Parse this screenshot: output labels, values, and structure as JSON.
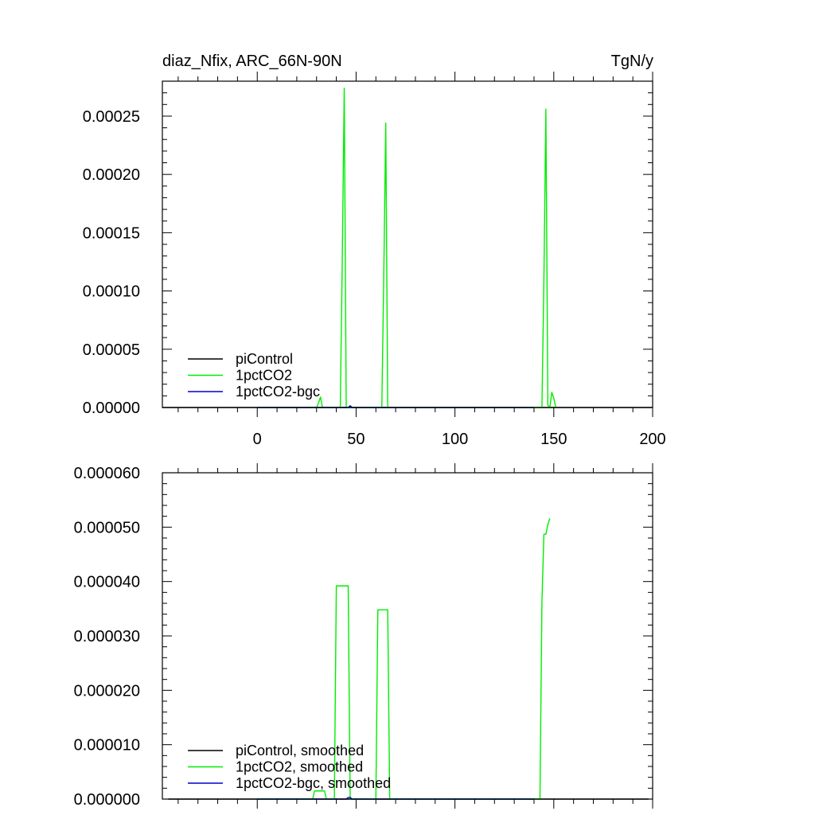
{
  "chart_data": [
    {
      "type": "line",
      "title": "diaz_Nfix, ARC_66N-90N",
      "units": "TgN/y",
      "xlim": [
        -48,
        200
      ],
      "ylim": [
        0,
        0.00028
      ],
      "x_ticks": [
        0,
        50,
        100,
        150,
        200
      ],
      "x_tick_labels": [
        "0",
        "50",
        "100",
        "150",
        "200"
      ],
      "y_ticks": [
        0,
        5e-05,
        0.0001,
        0.00015,
        0.0002,
        0.00025
      ],
      "y_tick_labels": [
        "0.00000",
        "0.00005",
        "0.00010",
        "0.00015",
        "0.00020",
        "0.00025"
      ],
      "legend_position": "bottom-left",
      "series": [
        {
          "name": "piControl",
          "color": "#000000",
          "x": [
            -48,
            200
          ],
          "y": [
            0,
            0
          ]
        },
        {
          "name": "1pctCO2",
          "color": "#00ee00",
          "x": [
            0,
            30,
            31,
            32,
            33,
            42,
            43,
            44,
            45,
            63,
            64,
            65,
            66,
            144,
            145,
            146,
            147,
            148,
            149,
            150,
            151
          ],
          "y": [
            0,
            0,
            4e-06,
            9e-06,
            0,
            0,
            0.000125,
            0.000274,
            0,
            0,
            0.000113,
            0.000244,
            0,
            0,
            0.00011,
            0.000256,
            2e-06,
            0,
            1.3e-05,
            8e-06,
            0
          ]
        },
        {
          "name": "1pctCO2-bgc",
          "color": "#0000cc",
          "x": [
            0,
            46,
            47,
            48,
            140
          ],
          "y": [
            0,
            0,
            1.5e-06,
            0,
            0
          ]
        }
      ]
    },
    {
      "type": "line",
      "xlim": [
        -48,
        200
      ],
      "ylim": [
        0,
        6e-05
      ],
      "x_ticks": [
        0,
        50,
        100,
        150,
        200
      ],
      "y_ticks": [
        0,
        1e-05,
        2e-05,
        3e-05,
        4e-05,
        5e-05,
        6e-05
      ],
      "y_tick_labels": [
        "0.000000",
        "0.000010",
        "0.000020",
        "0.000030",
        "0.000040",
        "0.000050",
        "0.000060"
      ],
      "legend_position": "bottom-left",
      "series": [
        {
          "name": "piControl, smoothed",
          "color": "#000000",
          "x": [
            -45,
            198
          ],
          "y": [
            0,
            0
          ]
        },
        {
          "name": "1pctCO2, smoothed",
          "color": "#00ee00",
          "x": [
            0,
            28,
            29,
            34,
            35,
            39,
            40,
            46,
            47,
            60,
            61,
            66,
            67,
            143,
            144,
            145,
            146,
            147,
            148
          ],
          "y": [
            0,
            0,
            1.5e-06,
            1.5e-06,
            0,
            0,
            3.92e-05,
            3.92e-05,
            0,
            0,
            3.48e-05,
            3.48e-05,
            0,
            0,
            3.62e-05,
            4.87e-05,
            4.87e-05,
            5.05e-05,
            5.16e-05
          ]
        },
        {
          "name": "1pctCO2-bgc, smoothed",
          "color": "#0000cc",
          "x": [
            0,
            45,
            46,
            47,
            48,
            140
          ],
          "y": [
            0,
            0,
            3e-07,
            3e-07,
            0,
            0
          ]
        }
      ]
    }
  ]
}
